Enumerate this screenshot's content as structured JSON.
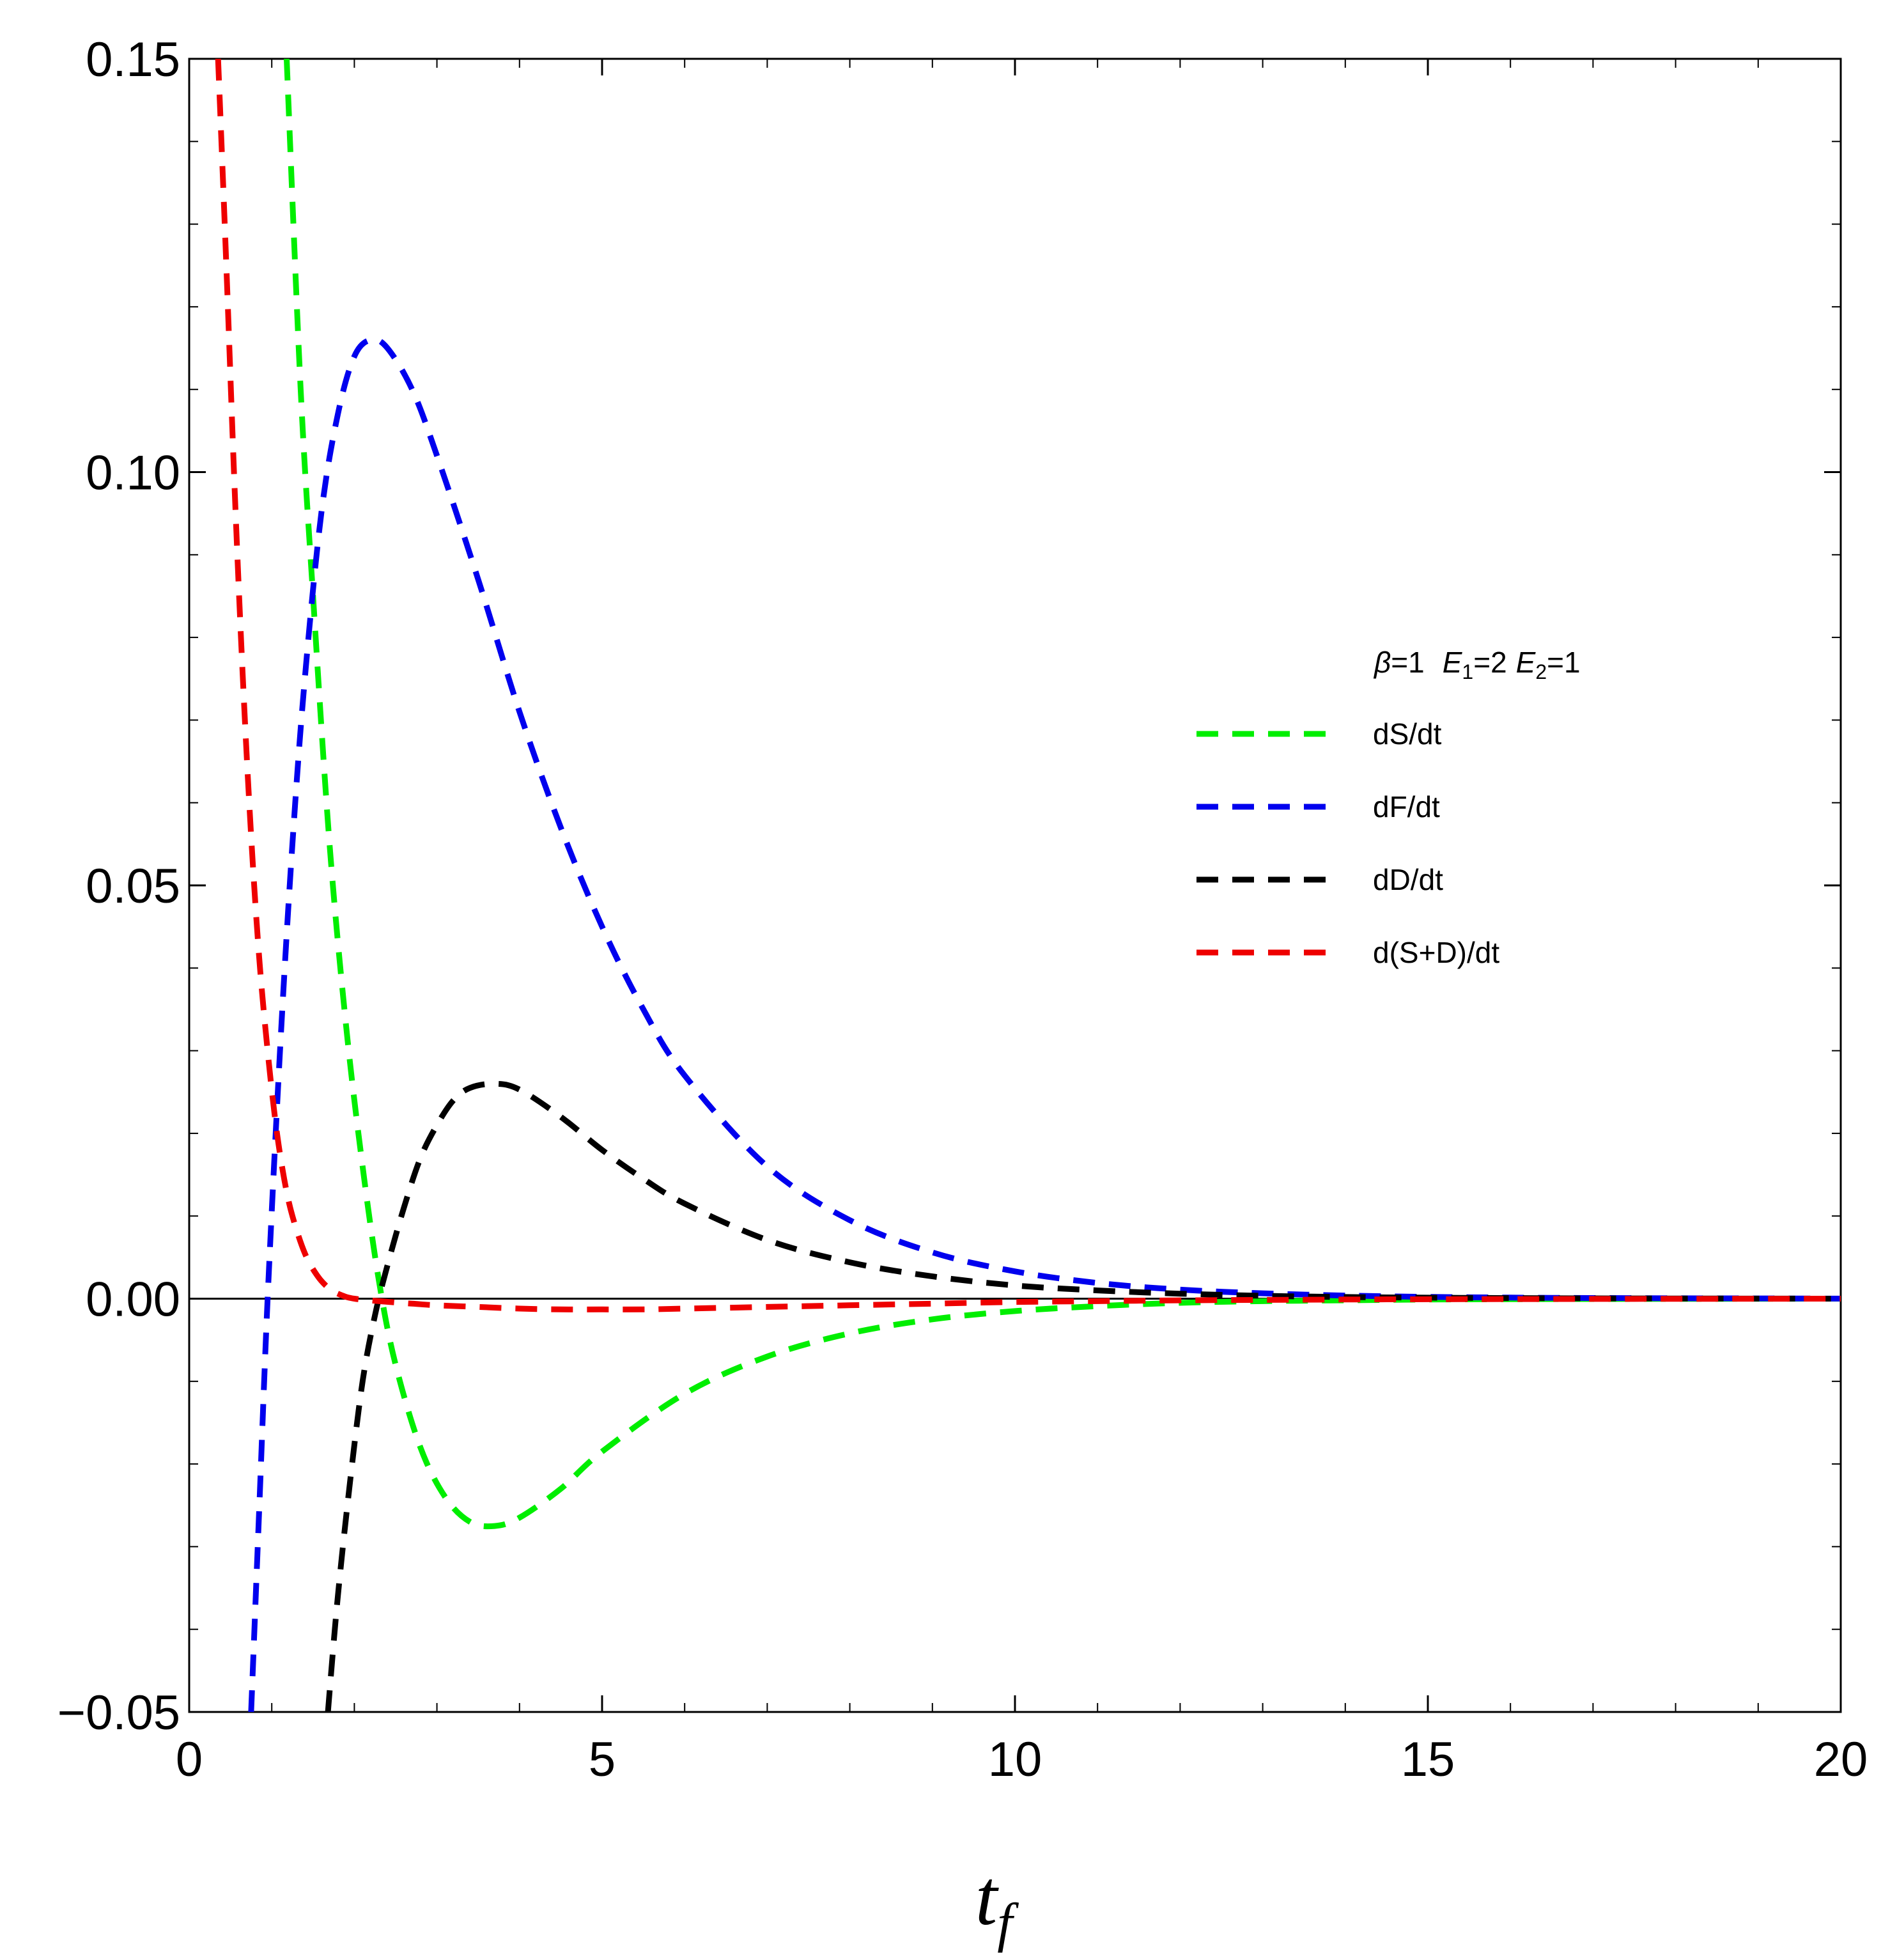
{
  "chart_data": {
    "type": "line",
    "title": "",
    "xlabel": "t",
    "xlabel_sub": "f",
    "ylabel": "",
    "xlim": [
      0,
      20
    ],
    "ylim": [
      -0.05,
      0.15
    ],
    "xticks": [
      0,
      5,
      10,
      15,
      20
    ],
    "xtick_labels": [
      "0",
      "5",
      "10",
      "15",
      "20"
    ],
    "yticks": [
      -0.05,
      0,
      0.05,
      0.1,
      0.15
    ],
    "ytick_labels": [
      "−0.05",
      "0.00",
      "0.05",
      "0.10",
      "0.15"
    ],
    "grid": false,
    "legend_position": "right",
    "legend_title": {
      "beta": "β",
      "beta_val": "=1",
      "e1": "E",
      "e1_sub": "1",
      "e1_val": "=2",
      "e2": "E",
      "e2_sub": "2",
      "e2_val": "=1"
    },
    "series": [
      {
        "name": "dS/dt",
        "color": "#00ee00",
        "x": [
          1.18,
          1.35,
          1.5,
          1.7,
          1.9,
          2.1,
          2.3,
          2.5,
          2.8,
          3.1,
          3.4,
          3.7,
          4.0,
          4.5,
          5.0,
          6.0,
          7.0,
          8.0,
          9.0,
          10.0,
          11.0,
          12.0,
          13.0,
          14.0,
          15.0,
          16.0,
          17.0,
          18.0,
          19.0,
          20.0
        ],
        "y": [
          0.15,
          0.11,
          0.085,
          0.055,
          0.033,
          0.016,
          0.002,
          -0.008,
          -0.018,
          -0.024,
          -0.027,
          -0.0275,
          -0.0265,
          -0.023,
          -0.0185,
          -0.0115,
          -0.007,
          -0.0042,
          -0.0025,
          -0.0015,
          -0.0009,
          -0.0005,
          -0.0003,
          -0.0002,
          -0.0001,
          -6e-05,
          -4e-05,
          -2e-05,
          -1e-05,
          0
        ]
      },
      {
        "name": "dF/dt",
        "color": "#0000ee",
        "x": [
          0.75,
          0.85,
          0.95,
          1.1,
          1.25,
          1.4,
          1.6,
          1.8,
          2.0,
          2.2,
          2.4,
          2.7,
          3.0,
          3.5,
          4.0,
          4.5,
          5.0,
          5.5,
          6.0,
          7.0,
          8.0,
          9.0,
          10.0,
          11.0,
          12.0,
          13.0,
          14.0,
          15.0,
          16.0,
          17.0,
          18.0,
          19.0,
          20.0
        ],
        "y": [
          -0.05,
          -0.025,
          0.0,
          0.03,
          0.055,
          0.075,
          0.095,
          0.107,
          0.114,
          0.116,
          0.115,
          0.11,
          0.102,
          0.087,
          0.071,
          0.057,
          0.045,
          0.035,
          0.027,
          0.016,
          0.0095,
          0.0056,
          0.0033,
          0.0019,
          0.0011,
          0.00065,
          0.00038,
          0.00022,
          0.00013,
          8e-05,
          5e-05,
          3e-05,
          1e-05
        ]
      },
      {
        "name": "dD/dt",
        "color": "#000000",
        "x": [
          1.68,
          1.8,
          1.95,
          2.1,
          2.25,
          2.4,
          2.6,
          2.8,
          3.0,
          3.2,
          3.4,
          3.7,
          4.0,
          4.5,
          5.0,
          5.5,
          6.0,
          7.0,
          8.0,
          9.0,
          10.0,
          11.0,
          12.0,
          13.0,
          14.0,
          15.0,
          16.0,
          17.0,
          18.0,
          19.0,
          20.0
        ],
        "y": [
          -0.05,
          -0.036,
          -0.022,
          -0.01,
          -0.002,
          0.004,
          0.011,
          0.017,
          0.021,
          0.024,
          0.0255,
          0.026,
          0.0253,
          0.022,
          0.018,
          0.0145,
          0.0115,
          0.0071,
          0.0044,
          0.0027,
          0.0016,
          0.001,
          0.0006,
          0.00035,
          0.0002,
          0.00012,
          7e-05,
          4e-05,
          2e-05,
          1e-05,
          0
        ]
      },
      {
        "name": "d(S+D)/dt",
        "color": "#ee0000",
        "x": [
          0.35,
          0.45,
          0.55,
          0.65,
          0.75,
          0.85,
          0.95,
          1.05,
          1.15,
          1.25,
          1.4,
          1.55,
          1.7,
          1.85,
          2.0,
          2.3,
          2.7,
          3.0,
          3.5,
          4.0,
          4.5,
          5.0,
          5.5,
          6.0,
          7.0,
          8.0,
          9.0,
          10.0,
          11.0,
          12.0,
          13.0,
          14.0,
          15.0,
          16.0,
          17.0,
          18.0,
          19.0,
          20.0
        ],
        "y": [
          0.15,
          0.125,
          0.098,
          0.075,
          0.056,
          0.041,
          0.03,
          0.021,
          0.0145,
          0.01,
          0.0055,
          0.0028,
          0.0012,
          0.0004,
          0.0,
          -0.0003,
          -0.0006,
          -0.0008,
          -0.001,
          -0.0012,
          -0.0013,
          -0.0013,
          -0.0013,
          -0.0012,
          -0.001,
          -0.0008,
          -0.0006,
          -0.0004,
          -0.0003,
          -0.0002,
          -0.00015,
          -0.0001,
          -7e-05,
          -5e-05,
          -3e-05,
          -2e-05,
          -1e-05,
          0
        ]
      }
    ]
  }
}
